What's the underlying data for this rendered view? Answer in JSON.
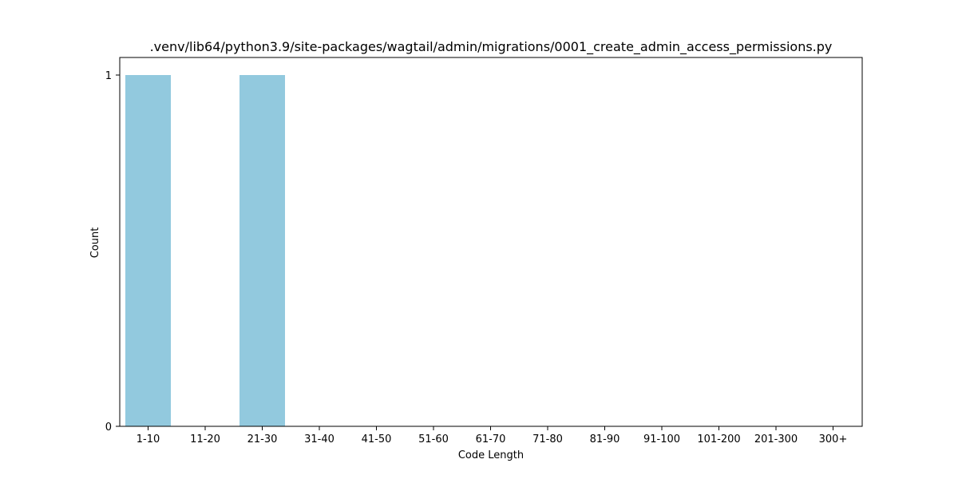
{
  "chart_data": {
    "type": "bar",
    "title": ".venv/lib64/python3.9/site-packages/wagtail/admin/migrations/0001_create_admin_access_permissions.py",
    "xlabel": "Code Length",
    "ylabel": "Count",
    "categories": [
      "1-10",
      "11-20",
      "21-30",
      "31-40",
      "41-50",
      "51-60",
      "61-70",
      "71-80",
      "81-90",
      "91-100",
      "101-200",
      "201-300",
      "300+"
    ],
    "values": [
      1,
      0,
      1,
      0,
      0,
      0,
      0,
      0,
      0,
      0,
      0,
      0,
      0
    ],
    "ylim": [
      0,
      1
    ],
    "yticks": [
      "0",
      "1"
    ],
    "grid": false,
    "bar_color": "#92c9de"
  }
}
